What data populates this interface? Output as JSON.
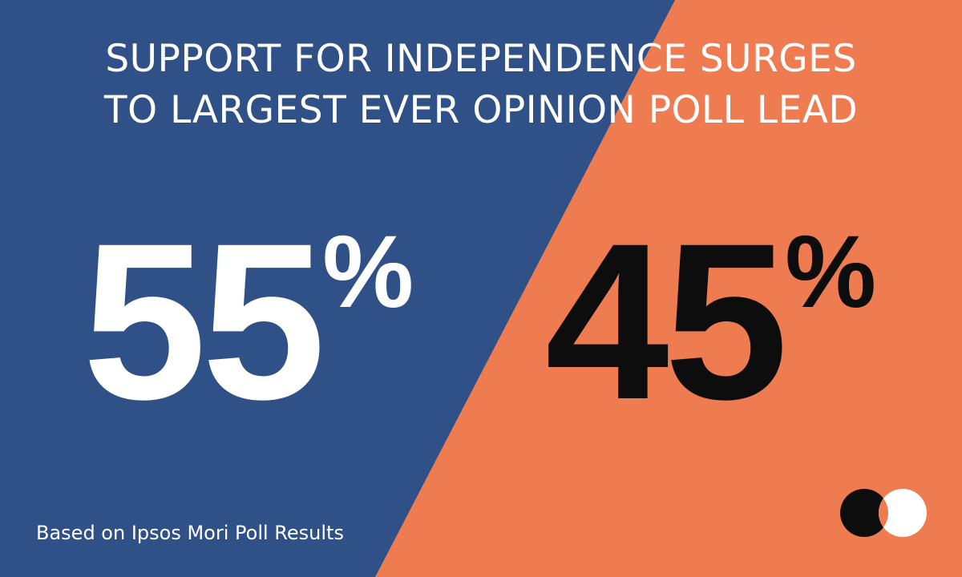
{
  "title": {
    "line1": "SUPPORT FOR INDEPENDENCE SURGES",
    "line2": "TO LARGEST EVER OPINION POLL LEAD"
  },
  "results": {
    "yes": {
      "value": "55",
      "unit": "%"
    },
    "no": {
      "value": "45",
      "unit": "%"
    }
  },
  "footer": "Based on Ipsos Mori Poll Results",
  "colors": {
    "blue": "#2f5187",
    "orange": "#ef7b51",
    "white": "#ffffff",
    "black": "#0d0d0d"
  },
  "logo": {
    "icon": "overlapping-circles-logo"
  }
}
